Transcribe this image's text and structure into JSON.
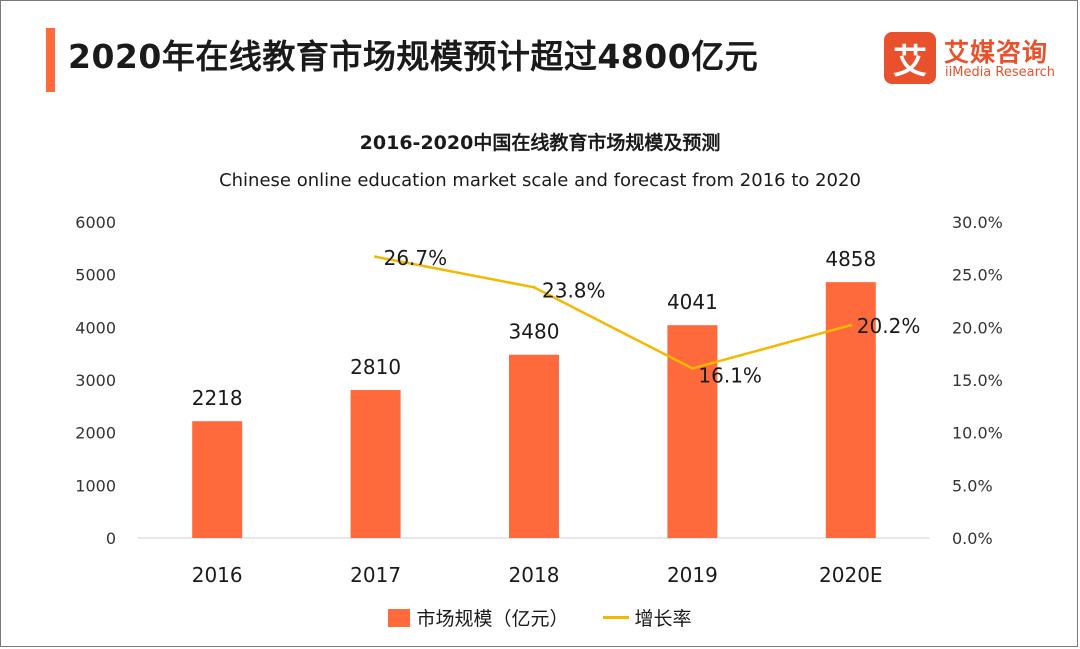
{
  "header": {
    "title": "2020年在线教育市场规模预计超过4800亿元"
  },
  "brand": {
    "mark": "艾",
    "name_cn": "艾媒咨询",
    "name_en": "iiMedia Research"
  },
  "colors": {
    "accent": "#ff6a3d",
    "bar": "#ff6a3d",
    "line": "#f5b800",
    "brand": "#e8512c"
  },
  "chart_data": {
    "type": "bar",
    "title": "2016-2020中国在线教育市场规模及预测",
    "subtitle": "Chinese online education market scale and forecast from 2016 to 2020",
    "categories": [
      "2016",
      "2017",
      "2018",
      "2019",
      "2020E"
    ],
    "series": [
      {
        "name": "市场规模（亿元）",
        "type": "bar",
        "axis": "left",
        "values": [
          2218,
          2810,
          3480,
          4041,
          4858
        ],
        "labels": [
          "2218",
          "2810",
          "3480",
          "4041",
          "4858"
        ]
      },
      {
        "name": "增长率",
        "type": "line",
        "axis": "right",
        "values": [
          null,
          26.7,
          23.8,
          16.1,
          20.2
        ],
        "labels": [
          "",
          "26.7%",
          "23.8%",
          "16.1%",
          "20.2%"
        ]
      }
    ],
    "y_left": {
      "ylim": [
        0,
        6000
      ],
      "ticks": [
        "0",
        "1000",
        "2000",
        "3000",
        "4000",
        "5000",
        "6000"
      ]
    },
    "y_right": {
      "ylim": [
        0,
        30
      ],
      "ticks": [
        "0.0%",
        "5.0%",
        "10.0%",
        "15.0%",
        "20.0%",
        "25.0%",
        "30.0%"
      ]
    },
    "grid": false,
    "legend_position": "bottom-center"
  }
}
